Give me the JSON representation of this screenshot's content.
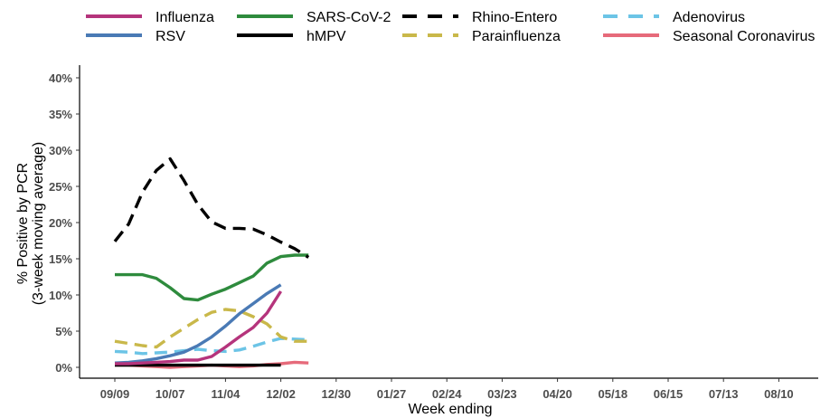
{
  "chart_data": {
    "type": "line",
    "title": "",
    "xlabel": "Week ending",
    "ylabel_line1": "% Positive by PCR",
    "ylabel_line2": "(3-week moving average)",
    "ylim": [
      0,
      40
    ],
    "yticks": [
      "0%",
      "5%",
      "10%",
      "15%",
      "20%",
      "25%",
      "30%",
      "35%",
      "40%"
    ],
    "xticks": [
      "09/09",
      "10/07",
      "11/04",
      "12/02",
      "12/30",
      "01/27",
      "02/24",
      "03/23",
      "04/20",
      "05/18",
      "06/15",
      "07/13",
      "08/10"
    ],
    "grid": false,
    "legend_position": "top",
    "series": [
      {
        "name": "Influenza",
        "color": "#b5347c",
        "dash": "solid",
        "values": [
          0.5,
          0.5,
          0.6,
          0.7,
          0.8,
          1.0,
          1.0,
          1.5,
          2.8,
          4.2,
          5.5,
          7.5,
          10.5
        ]
      },
      {
        "name": "RSV",
        "color": "#4a7ab5",
        "dash": "solid",
        "values": [
          0.6,
          0.7,
          0.9,
          1.2,
          1.6,
          2.1,
          3.0,
          4.2,
          5.7,
          7.4,
          8.8,
          10.2,
          11.4
        ]
      },
      {
        "name": "SARS-CoV-2",
        "color": "#2e8b3d",
        "dash": "solid",
        "values": [
          12.8,
          12.8,
          12.8,
          12.3,
          11.0,
          9.5,
          9.3,
          10.1,
          10.8,
          11.7,
          12.6,
          14.4,
          15.3,
          15.5,
          15.5
        ]
      },
      {
        "name": "hMPV",
        "color": "#000000",
        "dash": "solid",
        "values": [
          0.3,
          0.3,
          0.3,
          0.3,
          0.3,
          0.3,
          0.3,
          0.3,
          0.3,
          0.3,
          0.3,
          0.3,
          0.3
        ]
      },
      {
        "name": "Rhino-Entero",
        "color": "#000000",
        "dash": "dashed",
        "values": [
          17.4,
          19.8,
          24.2,
          27.2,
          28.8,
          25.8,
          22.5,
          20.1,
          19.2,
          19.2,
          19.1,
          18.3,
          17.3,
          16.4,
          15.2
        ]
      },
      {
        "name": "Parainfluenza",
        "color": "#c9b84a",
        "dash": "dashed",
        "values": [
          3.6,
          3.3,
          3.0,
          2.8,
          4.2,
          5.4,
          6.6,
          7.6,
          8.0,
          7.8,
          7.0,
          6.0,
          4.2,
          3.6,
          3.6
        ]
      },
      {
        "name": "Adenovirus",
        "color": "#6cc4e6",
        "dash": "dashed",
        "values": [
          2.2,
          2.1,
          1.9,
          2.0,
          2.1,
          2.3,
          2.5,
          2.3,
          2.2,
          2.4,
          2.9,
          3.5,
          4.0,
          3.9,
          3.8
        ]
      },
      {
        "name": "Seasonal Coronavirus",
        "color": "#e66a7a",
        "dash": "solid",
        "values": [
          0.3,
          0.3,
          0.2,
          0.1,
          0.0,
          0.1,
          0.2,
          0.3,
          0.2,
          0.1,
          0.2,
          0.4,
          0.5,
          0.7,
          0.6
        ]
      }
    ]
  }
}
